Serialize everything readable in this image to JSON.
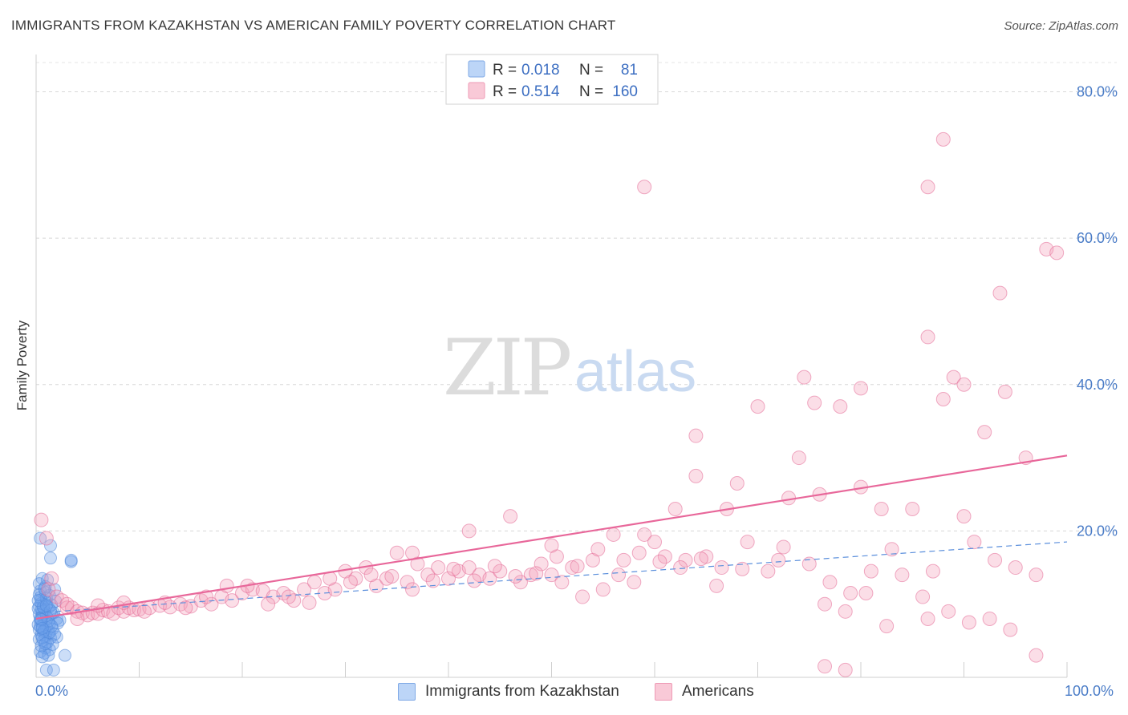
{
  "header": {
    "title": "IMMIGRANTS FROM KAZAKHSTAN VS AMERICAN FAMILY POVERTY CORRELATION CHART",
    "source": "Source: ZipAtlas.com"
  },
  "legend_top": {
    "rows": [
      {
        "r_label": "R =",
        "r_value": "0.018",
        "n_label": "N =",
        "n_value": "81",
        "color": "#a9c8f5"
      },
      {
        "r_label": "R =",
        "r_value": "0.514",
        "n_label": "N =",
        "n_value": "160",
        "color": "#f7b6c8"
      }
    ]
  },
  "watermark": {
    "zip": "ZIP",
    "atlas": "atlas"
  },
  "chart_data": {
    "type": "scatter",
    "title": "IMMIGRANTS FROM KAZAKHSTAN VS AMERICAN FAMILY POVERTY CORRELATION CHART",
    "xlabel": "",
    "ylabel": "Family Poverty",
    "xlim": [
      0,
      100
    ],
    "ylim": [
      0,
      84
    ],
    "x_tick_labels": [
      "0.0%",
      "100.0%"
    ],
    "y_tick_labels": [
      "20.0%",
      "40.0%",
      "60.0%",
      "80.0%"
    ],
    "y_ticks": [
      20,
      40,
      60,
      80
    ],
    "grid": true,
    "legend_position": "top-center",
    "series": [
      {
        "name": "Immigrants from Kazakhstan",
        "color": "#4f86d9",
        "fill": "rgba(110,160,235,0.35)",
        "trend": {
          "x": [
            0,
            100
          ],
          "y": [
            8.8,
            18.5
          ],
          "style": "dashed"
        },
        "points": [
          [
            0.4,
            19.0
          ],
          [
            1.4,
            18.0
          ],
          [
            1.4,
            16.3
          ],
          [
            3.4,
            15.8
          ],
          [
            3.4,
            16.0
          ],
          [
            0.6,
            13.5
          ],
          [
            0.9,
            12.4
          ],
          [
            1.8,
            12.0
          ],
          [
            0.4,
            11.8
          ],
          [
            1.3,
            11.2
          ],
          [
            0.5,
            10.6
          ],
          [
            1.0,
            10.3
          ],
          [
            1.9,
            10.4
          ],
          [
            0.7,
            10.0
          ],
          [
            0.3,
            9.7
          ],
          [
            1.2,
            9.5
          ],
          [
            0.5,
            9.2
          ],
          [
            0.8,
            9.0
          ],
          [
            1.5,
            8.7
          ],
          [
            0.3,
            8.6
          ],
          [
            0.6,
            8.3
          ],
          [
            1.1,
            8.1
          ],
          [
            2.0,
            8.0
          ],
          [
            2.3,
            7.8
          ],
          [
            0.4,
            7.7
          ],
          [
            0.8,
            7.5
          ],
          [
            1.3,
            7.3
          ],
          [
            0.2,
            7.2
          ],
          [
            0.6,
            7.0
          ],
          [
            1.0,
            6.8
          ],
          [
            1.6,
            6.6
          ],
          [
            0.3,
            6.5
          ],
          [
            0.7,
            6.2
          ],
          [
            1.2,
            6.0
          ],
          [
            0.5,
            5.8
          ],
          [
            0.9,
            5.6
          ],
          [
            1.4,
            5.4
          ],
          [
            2.0,
            5.5
          ],
          [
            0.3,
            5.2
          ],
          [
            0.7,
            5.0
          ],
          [
            1.1,
            4.8
          ],
          [
            1.6,
            4.5
          ],
          [
            0.5,
            4.3
          ],
          [
            0.9,
            4.0
          ],
          [
            1.3,
            3.8
          ],
          [
            0.4,
            3.5
          ],
          [
            0.8,
            3.3
          ],
          [
            1.2,
            3.0
          ],
          [
            2.8,
            3.0
          ],
          [
            0.6,
            2.8
          ],
          [
            1.0,
            1.0
          ],
          [
            1.7,
            1.0
          ],
          [
            0.4,
            10.9
          ],
          [
            0.9,
            11.6
          ],
          [
            1.5,
            9.9
          ],
          [
            0.6,
            8.8
          ],
          [
            1.0,
            8.4
          ],
          [
            0.2,
            9.4
          ],
          [
            0.4,
            6.9
          ],
          [
            0.8,
            6.4
          ],
          [
            1.2,
            7.7
          ],
          [
            0.5,
            10.1
          ],
          [
            1.7,
            8.8
          ],
          [
            0.3,
            12.8
          ],
          [
            1.1,
            13.3
          ],
          [
            2.1,
            7.4
          ],
          [
            0.7,
            9.6
          ],
          [
            1.0,
            10.8
          ],
          [
            0.4,
            8.0
          ],
          [
            1.3,
            6.1
          ],
          [
            0.6,
            5.4
          ],
          [
            0.9,
            4.6
          ],
          [
            1.5,
            7.0
          ],
          [
            0.3,
            11.3
          ],
          [
            0.8,
            12.1
          ],
          [
            1.4,
            9.1
          ],
          [
            0.5,
            7.9
          ],
          [
            1.8,
            5.9
          ],
          [
            0.2,
            10.5
          ],
          [
            1.0,
            9.8
          ],
          [
            0.6,
            6.7
          ]
        ]
      },
      {
        "name": "Americans",
        "color": "#e46a95",
        "fill": "rgba(244,160,185,0.35)",
        "trend": {
          "x": [
            0,
            100
          ],
          "y": [
            8.0,
            30.3
          ],
          "style": "solid"
        },
        "points": [
          [
            0.5,
            21.5
          ],
          [
            1.0,
            19.0
          ],
          [
            1.5,
            13.5
          ],
          [
            1.2,
            12.0
          ],
          [
            2.0,
            11.0
          ],
          [
            2.5,
            10.5
          ],
          [
            3.0,
            9.5
          ],
          [
            3.5,
            9.5
          ],
          [
            4.0,
            9.0
          ],
          [
            4.5,
            8.8
          ],
          [
            5.0,
            8.5
          ],
          [
            5.5,
            8.8
          ],
          [
            6.0,
            8.7
          ],
          [
            6.5,
            9.2
          ],
          [
            7.0,
            9.0
          ],
          [
            7.5,
            8.7
          ],
          [
            8.0,
            9.5
          ],
          [
            8.5,
            9.0
          ],
          [
            9.0,
            9.5
          ],
          [
            9.5,
            9.2
          ],
          [
            10.0,
            9.3
          ],
          [
            11.0,
            9.5
          ],
          [
            12.0,
            9.8
          ],
          [
            13.0,
            9.6
          ],
          [
            14.0,
            10.0
          ],
          [
            15.0,
            9.7
          ],
          [
            16.0,
            10.5
          ],
          [
            17.0,
            10.0
          ],
          [
            18.0,
            11.0
          ],
          [
            19.0,
            10.5
          ],
          [
            20.0,
            11.5
          ],
          [
            21.0,
            12.0
          ],
          [
            22.0,
            11.8
          ],
          [
            23.0,
            11.0
          ],
          [
            24.0,
            11.5
          ],
          [
            25.0,
            10.5
          ],
          [
            26.0,
            12.0
          ],
          [
            27.0,
            13.0
          ],
          [
            28.0,
            11.5
          ],
          [
            29.0,
            12.0
          ],
          [
            30.0,
            14.5
          ],
          [
            31.0,
            13.5
          ],
          [
            32.0,
            15.0
          ],
          [
            33.0,
            12.5
          ],
          [
            34.0,
            13.5
          ],
          [
            35.0,
            17.0
          ],
          [
            36.0,
            13.0
          ],
          [
            37.0,
            15.5
          ],
          [
            38.0,
            14.0
          ],
          [
            39.0,
            15.0
          ],
          [
            40.0,
            13.5
          ],
          [
            41.0,
            14.5
          ],
          [
            42.0,
            15.0
          ],
          [
            43.0,
            14.0
          ],
          [
            44.0,
            13.5
          ],
          [
            45.0,
            14.5
          ],
          [
            46.0,
            22.0
          ],
          [
            47.0,
            13.0
          ],
          [
            48.0,
            14.0
          ],
          [
            49.0,
            15.5
          ],
          [
            50.0,
            14.0
          ],
          [
            51.0,
            13.0
          ],
          [
            52.0,
            15.0
          ],
          [
            53.0,
            11.0
          ],
          [
            54.0,
            16.0
          ],
          [
            55.0,
            12.0
          ],
          [
            56.0,
            19.5
          ],
          [
            57.0,
            16.0
          ],
          [
            58.0,
            13.0
          ],
          [
            59.0,
            19.5
          ],
          [
            60.0,
            18.5
          ],
          [
            61.0,
            16.5
          ],
          [
            62.0,
            23.0
          ],
          [
            63.0,
            16.0
          ],
          [
            64.0,
            27.5
          ],
          [
            65.0,
            16.5
          ],
          [
            66.0,
            12.5
          ],
          [
            67.0,
            23.0
          ],
          [
            68.0,
            26.5
          ],
          [
            69.0,
            18.5
          ],
          [
            70.0,
            37.0
          ],
          [
            71.0,
            14.5
          ],
          [
            72.0,
            16.0
          ],
          [
            73.0,
            24.5
          ],
          [
            74.0,
            30.0
          ],
          [
            75.0,
            15.5
          ],
          [
            76.0,
            25.0
          ],
          [
            77.0,
            13.0
          ],
          [
            78.0,
            37.0
          ],
          [
            79.0,
            11.5
          ],
          [
            80.0,
            26.0
          ],
          [
            81.0,
            14.5
          ],
          [
            82.0,
            23.0
          ],
          [
            83.0,
            17.5
          ],
          [
            84.0,
            14.0
          ],
          [
            85.0,
            23.0
          ],
          [
            86.0,
            11.0
          ],
          [
            87.0,
            14.5
          ],
          [
            88.0,
            38.0
          ],
          [
            89.0,
            41.0
          ],
          [
            90.0,
            22.0
          ],
          [
            91.0,
            18.5
          ],
          [
            92.0,
            33.5
          ],
          [
            93.0,
            16.0
          ],
          [
            94.0,
            39.0
          ],
          [
            95.0,
            15.0
          ],
          [
            96.0,
            30.0
          ],
          [
            97.0,
            14.0
          ],
          [
            98.0,
            58.5
          ],
          [
            99.0,
            58.0
          ],
          [
            86.5,
            67.0
          ],
          [
            88.0,
            73.5
          ],
          [
            93.5,
            52.5
          ],
          [
            86.5,
            46.5
          ],
          [
            90.0,
            40.0
          ],
          [
            59.0,
            67.0
          ],
          [
            80.0,
            39.5
          ],
          [
            75.5,
            37.5
          ],
          [
            74.5,
            41.0
          ],
          [
            64.0,
            33.0
          ],
          [
            3.0,
            10.0
          ],
          [
            4.0,
            8.0
          ],
          [
            6.0,
            9.8
          ],
          [
            8.5,
            10.2
          ],
          [
            10.5,
            9.0
          ],
          [
            12.5,
            10.2
          ],
          [
            14.5,
            9.5
          ],
          [
            16.5,
            11.0
          ],
          [
            18.5,
            12.5
          ],
          [
            20.5,
            12.5
          ],
          [
            22.5,
            10.0
          ],
          [
            24.5,
            11.0
          ],
          [
            26.5,
            10.2
          ],
          [
            28.5,
            13.5
          ],
          [
            30.5,
            13.0
          ],
          [
            32.5,
            14.0
          ],
          [
            34.5,
            13.8
          ],
          [
            36.5,
            12.0
          ],
          [
            38.5,
            13.2
          ],
          [
            40.5,
            14.8
          ],
          [
            42.5,
            13.2
          ],
          [
            44.5,
            15.2
          ],
          [
            46.5,
            13.8
          ],
          [
            48.5,
            14.2
          ],
          [
            50.5,
            16.5
          ],
          [
            52.5,
            15.2
          ],
          [
            54.5,
            17.5
          ],
          [
            56.5,
            14.0
          ],
          [
            58.5,
            17.0
          ],
          [
            60.5,
            15.8
          ],
          [
            62.5,
            15.0
          ],
          [
            64.5,
            16.2
          ],
          [
            66.5,
            15.0
          ],
          [
            68.5,
            14.8
          ],
          [
            72.5,
            17.8
          ],
          [
            76.5,
            10.0
          ],
          [
            78.5,
            9.0
          ],
          [
            80.5,
            11.5
          ],
          [
            82.5,
            7.0
          ],
          [
            86.5,
            8.0
          ],
          [
            88.5,
            9.0
          ],
          [
            90.5,
            7.5
          ],
          [
            92.5,
            8.0
          ],
          [
            94.5,
            6.5
          ],
          [
            97.0,
            3.0
          ],
          [
            76.5,
            1.5
          ],
          [
            78.5,
            1.0
          ],
          [
            36.5,
            17.0
          ],
          [
            42.0,
            20.0
          ],
          [
            50.0,
            18.0
          ]
        ]
      }
    ]
  }
}
